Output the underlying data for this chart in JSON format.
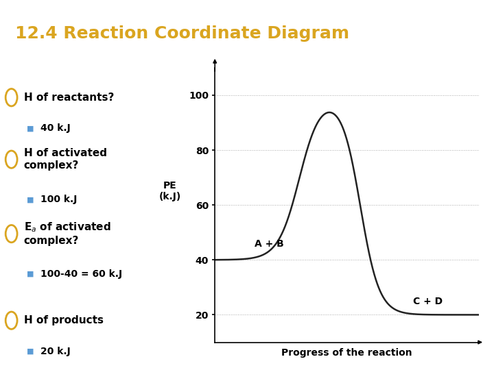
{
  "title": "12.4 Reaction Coordinate Diagram",
  "title_color": "#DAA520",
  "title_bg": "#000000",
  "bg_color": "#FFFFFF",
  "header_bg": "#000000",
  "bullet_color": "#DAA520",
  "sub_bullet_color": "#5B9BD5",
  "bullets": [
    {
      "text": "H of reactants?",
      "sub": "40 k.J",
      "has_sub": true
    },
    {
      "text": "H of activated\ncomplex?",
      "sub": "100 k.J",
      "has_sub": true
    },
    {
      "text": "E$_a$ of activated\ncomplex?",
      "sub": "100-40 = 60 k.J",
      "has_sub": true
    },
    {
      "text": "H of products",
      "sub": "20 k.J",
      "has_sub": true
    }
  ],
  "graph": {
    "ylabel": "PE\n(k.J)",
    "xlabel": "Progress of the reaction",
    "yticks": [
      20,
      40,
      60,
      80,
      100
    ],
    "ylim": [
      10,
      110
    ],
    "xlim": [
      0,
      10
    ],
    "reactants_label": "A + B",
    "products_label": "C + D",
    "curve_color": "#222222",
    "grid_color": "#AAAAAA",
    "reactant_y": 40,
    "peak_y": 100,
    "product_y": 20
  }
}
